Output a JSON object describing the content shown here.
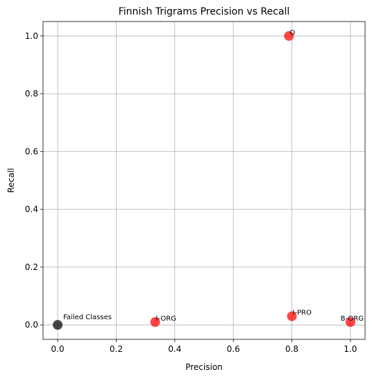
{
  "chart_data": {
    "type": "scatter",
    "title": "Finnish Trigrams Precision vs Recall",
    "xlabel": "Precision",
    "ylabel": "Recall",
    "xlim": [
      -0.05,
      1.05
    ],
    "ylim": [
      -0.05,
      1.05
    ],
    "xticks": [
      0.0,
      0.2,
      0.4,
      0.6,
      0.8,
      1.0
    ],
    "yticks": [
      0.0,
      0.2,
      0.4,
      0.6,
      0.8,
      1.0
    ],
    "xtick_labels": [
      "0.0",
      "0.2",
      "0.4",
      "0.6",
      "0.8",
      "1.0"
    ],
    "ytick_labels": [
      "0.0",
      "0.2",
      "0.4",
      "0.6",
      "0.8",
      "1.0"
    ],
    "grid": true,
    "points": [
      {
        "label": "O",
        "x": 0.79,
        "y": 1.0,
        "color": "#ff0000"
      },
      {
        "label": "I-ORG",
        "x": 0.333,
        "y": 0.01,
        "color": "#ff0000"
      },
      {
        "label": "I-PRO",
        "x": 0.8,
        "y": 0.03,
        "color": "#ff0000"
      },
      {
        "label": "B-ORG",
        "x": 1.0,
        "y": 0.01,
        "color": "#ff0000"
      },
      {
        "label": "Failed Classes",
        "x": 0.0,
        "y": 0.0,
        "color": "#000000"
      }
    ]
  }
}
